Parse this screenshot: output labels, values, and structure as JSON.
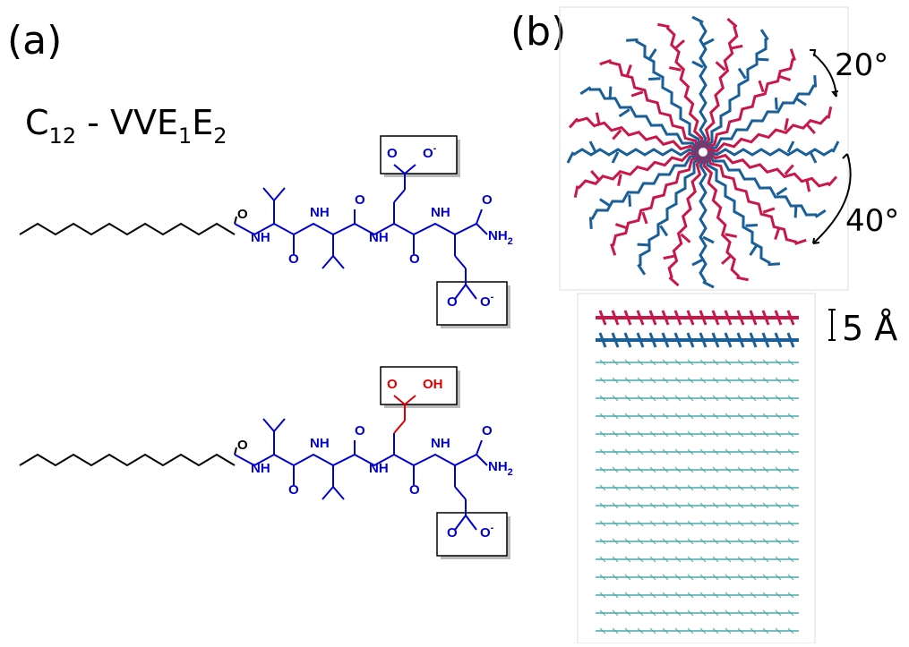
{
  "panel_a": {
    "label": "(a)",
    "formula": [
      "C",
      "12",
      " - VVE",
      "1",
      "E",
      "2"
    ],
    "molecules": [
      {
        "atoms": [
          {
            "label": "O"
          },
          {
            "label": "NH"
          },
          {
            "label": "O"
          },
          {
            "label": "NH"
          },
          {
            "label": "O"
          },
          {
            "label": "NH"
          },
          {
            "label": "O"
          },
          {
            "label": "NH"
          },
          {
            "label": "O"
          },
          {
            "label": "NH",
            "sub": "2"
          },
          {
            "label": "O"
          },
          {
            "label": "O",
            "charge": "-"
          },
          {
            "label": "O"
          },
          {
            "label": "O",
            "charge": "-"
          }
        ]
      },
      {
        "atoms": [
          {
            "label": "O"
          },
          {
            "label": "NH"
          },
          {
            "label": "O"
          },
          {
            "label": "NH"
          },
          {
            "label": "O"
          },
          {
            "label": "NH"
          },
          {
            "label": "O"
          },
          {
            "label": "NH"
          },
          {
            "label": "O"
          },
          {
            "label": "NH",
            "sub": "2"
          },
          {
            "label": "O"
          },
          {
            "label": "OH"
          },
          {
            "label": "O"
          },
          {
            "label": "O",
            "charge": "-"
          }
        ]
      }
    ]
  },
  "panel_b": {
    "label": "(b)",
    "angles": [
      "20°",
      "40°"
    ],
    "spacing": "5 Å"
  }
}
